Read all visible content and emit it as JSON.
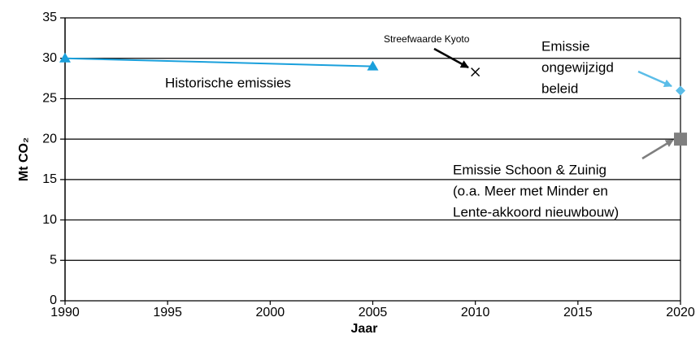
{
  "chart_data": {
    "type": "line",
    "x_label": "Jaar",
    "y_label": "Mt CO₂",
    "xlim": [
      1990,
      2020
    ],
    "xticks": [
      1990,
      1995,
      2000,
      2005,
      2010,
      2015,
      2020
    ],
    "ylim": [
      0,
      35
    ],
    "yticks": [
      0,
      5,
      10,
      15,
      20,
      25,
      30,
      35
    ],
    "grid": true,
    "series": [
      {
        "label": [
          "Historische emissies"
        ],
        "color": "#1aa0dc",
        "marker": "triangle",
        "connect": true,
        "x": [
          1990,
          2005
        ],
        "values": [
          30,
          29
        ]
      },
      {
        "label": [
          "Streefwaarde Kyoto"
        ],
        "color": "#000000",
        "marker": "cross",
        "connect": false,
        "x": [
          2010
        ],
        "values": [
          28.3
        ]
      },
      {
        "label": [
          "Emissie",
          "ongewijzigd",
          "beleid"
        ],
        "color": "#5bbde8",
        "marker": "diamond",
        "connect": false,
        "x": [
          2020
        ],
        "values": [
          26
        ]
      },
      {
        "label": [
          "Emissie Schoon & Zuinig",
          "(o.a. Meer met Minder en",
          "Lente-akkoord nieuwbouw)"
        ],
        "color": "#7f7f7f",
        "marker": "square",
        "connect": false,
        "x": [
          2020
        ],
        "values": [
          20
        ]
      }
    ]
  }
}
